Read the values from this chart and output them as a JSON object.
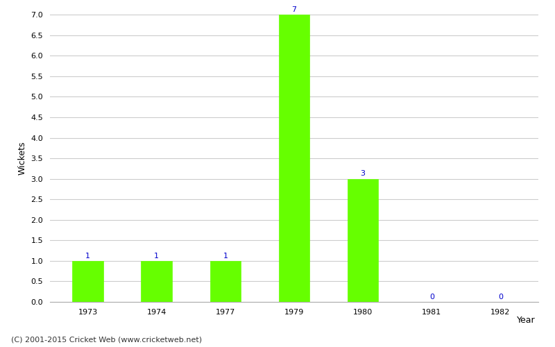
{
  "categories": [
    "1973",
    "1974",
    "1977",
    "1979",
    "1980",
    "1981",
    "1982"
  ],
  "values": [
    1,
    1,
    1,
    7,
    3,
    0,
    0
  ],
  "bar_color": "#66ff00",
  "bar_edge_color": "#66ff00",
  "xlabel": "Year",
  "ylabel": "Wickets",
  "ylim": [
    0,
    7.0
  ],
  "yticks": [
    0.0,
    0.5,
    1.0,
    1.5,
    2.0,
    2.5,
    3.0,
    3.5,
    4.0,
    4.5,
    5.0,
    5.5,
    6.0,
    6.5,
    7.0
  ],
  "label_color": "#0000cc",
  "label_fontsize": 8,
  "axis_label_fontsize": 9,
  "tick_fontsize": 8,
  "footer_text": "(C) 2001-2015 Cricket Web (www.cricketweb.net)",
  "footer_fontsize": 8,
  "footer_color": "#333333",
  "background_color": "#ffffff",
  "grid_color": "#cccccc",
  "bar_width": 0.45
}
